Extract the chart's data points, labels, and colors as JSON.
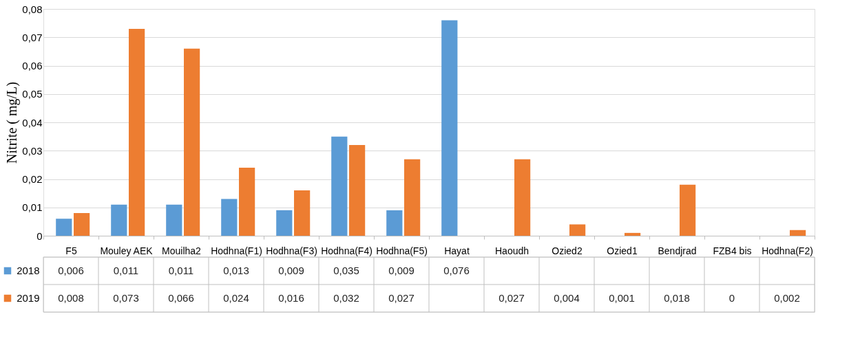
{
  "chart_data": {
    "type": "bar",
    "ylabel": "Nitrite ( mg/L)",
    "categories": [
      "F5",
      "Mouley AEK",
      "Mouilha2",
      "Hodhna(F1)",
      "Hodhna(F3)",
      "Hodhna(F4)",
      "Hodhna(F5)",
      "Hayat",
      "Haoudh",
      "Ozied2",
      "Ozied1",
      "Bendjrad",
      "FZB4 bis",
      "Hodhna(F2)"
    ],
    "series": [
      {
        "name": "2018",
        "color": "#5b9bd5",
        "values": [
          0.006,
          0.011,
          0.011,
          0.013,
          0.009,
          0.035,
          0.009,
          0.076,
          null,
          null,
          null,
          null,
          null,
          null
        ],
        "value_labels": [
          "0,006",
          "0,011",
          "0,011",
          "0,013",
          "0,009",
          "0,035",
          "0,009",
          "0,076",
          null,
          null,
          null,
          null,
          null,
          null
        ]
      },
      {
        "name": "2019",
        "color": "#ed7d31",
        "values": [
          0.008,
          0.073,
          0.066,
          0.024,
          0.016,
          0.032,
          0.027,
          null,
          0.027,
          0.004,
          0.001,
          0.018,
          0,
          0.002
        ],
        "value_labels": [
          "0,008",
          "0,073",
          "0,066",
          "0,024",
          "0,016",
          "0,032",
          "0,027",
          null,
          "0,027",
          "0,004",
          "0,001",
          "0,018",
          "0",
          "0,002"
        ]
      }
    ],
    "ylim": [
      0,
      0.08
    ],
    "yticks": [
      0,
      {
        "value": 0.01,
        "label": "0,01"
      },
      {
        "value": 0.02,
        "label": "0,02"
      },
      {
        "value": 0.03,
        "label": "0,03"
      },
      {
        "value": 0.04,
        "label": "0,04"
      },
      {
        "value": 0.05,
        "label": "0,05"
      },
      {
        "value": 0.06,
        "label": "0,06"
      },
      {
        "value": 0.07,
        "label": "0,07"
      },
      {
        "value": 0.08,
        "label": "0,08"
      }
    ],
    "grid": "y",
    "legend": "bottom"
  }
}
